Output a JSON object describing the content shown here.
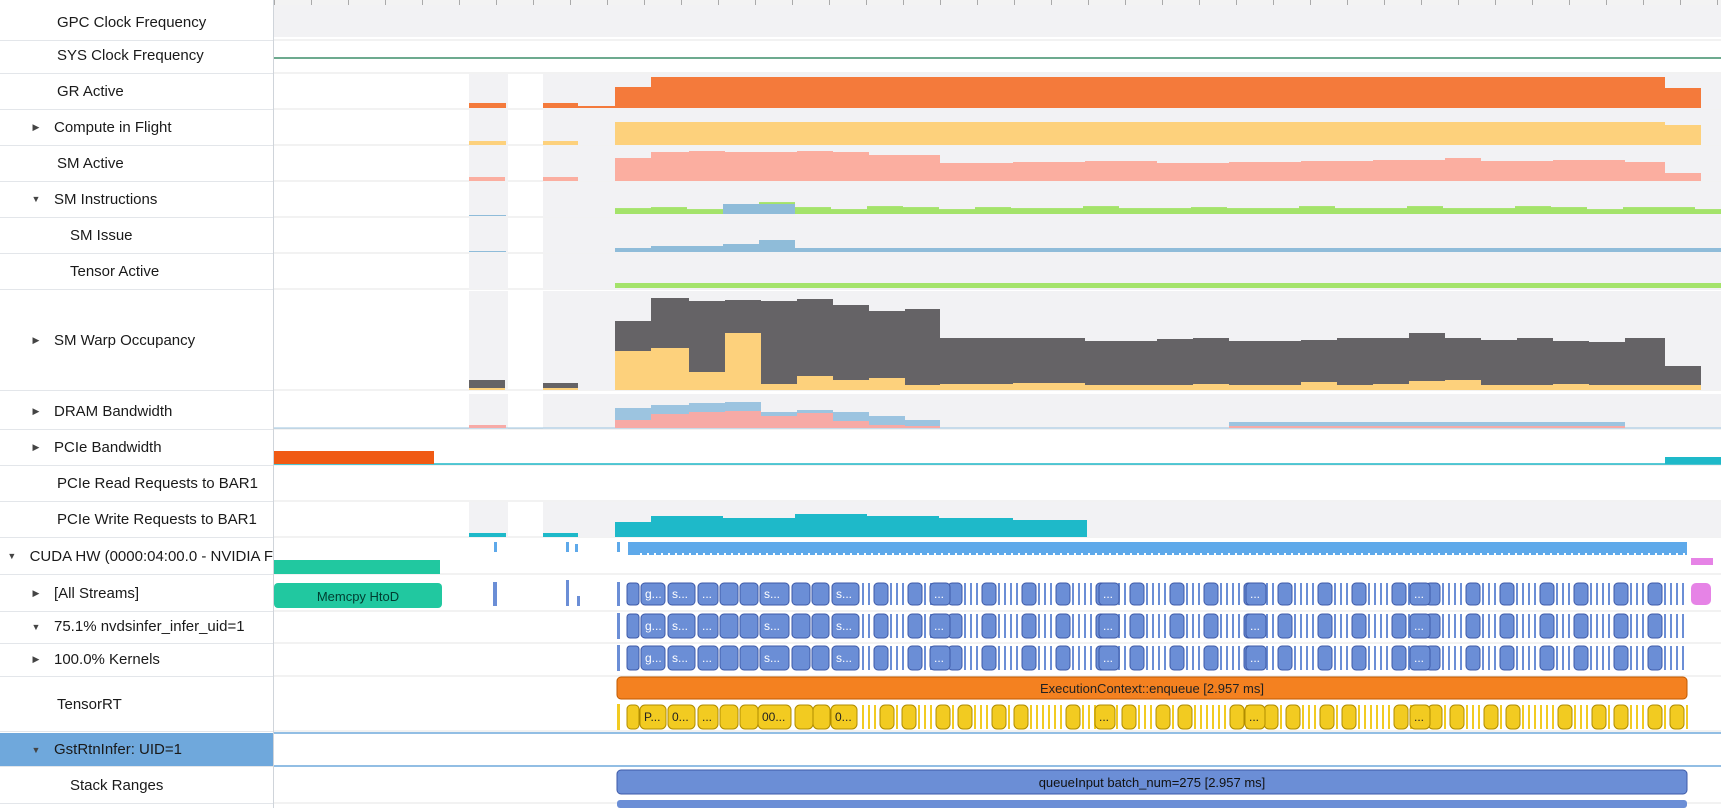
{
  "rows": [
    {
      "label": "GPC Clock Frequency",
      "indent": 1,
      "expander": "none"
    },
    {
      "label": "SYS Clock Frequency",
      "indent": 1,
      "expander": "none"
    },
    {
      "label": "GR Active",
      "indent": 1,
      "expander": "none"
    },
    {
      "label": "Compute in Flight",
      "indent": 1,
      "expander": "collapsed"
    },
    {
      "label": "SM Active",
      "indent": 1,
      "expander": "none"
    },
    {
      "label": "SM Instructions",
      "indent": 1,
      "expander": "expanded"
    },
    {
      "label": "SM Issue",
      "indent": 2,
      "expander": "none"
    },
    {
      "label": "Tensor Active",
      "indent": 2,
      "expander": "none"
    },
    {
      "label": "SM Warp Occupancy",
      "indent": 1,
      "expander": "collapsed"
    },
    {
      "label": "DRAM Bandwidth",
      "indent": 1,
      "expander": "collapsed"
    },
    {
      "label": "PCIe Bandwidth",
      "indent": 1,
      "expander": "collapsed"
    },
    {
      "label": "PCIe Read Requests to BAR1",
      "indent": 1,
      "expander": "none"
    },
    {
      "label": "PCIe Write Requests to BAR1",
      "indent": 1,
      "expander": "none"
    },
    {
      "label": "CUDA HW (0000:04:00.0 - NVIDIA F",
      "indent": 0,
      "expander": "expanded"
    },
    {
      "label": "[All Streams]",
      "indent": 1,
      "expander": "collapsed"
    },
    {
      "label": "75.1% nvdsinfer_infer_uid=1",
      "indent": 1,
      "expander": "expanded"
    },
    {
      "label": "100.0% Kernels",
      "indent": 1,
      "expander": "collapsed"
    },
    {
      "label": "TensorRT",
      "indent": 1,
      "expander": "none"
    },
    {
      "label": "GstRtnInfer: UID=1",
      "indent": 1,
      "expander": "expanded",
      "selected": true
    },
    {
      "label": "Stack Ranges",
      "indent": 2,
      "expander": "none"
    }
  ],
  "labels": {
    "memcpy": "Memcpy HtoD",
    "enqueue": "ExecutionContext::enqueue [2.957 ms]",
    "queue_input": "queueInput batch_num=275 [2.957 ms]",
    "kernel_g": "g...",
    "kernel_s": "s...",
    "kernel_dots": "...",
    "trt_p": "P...",
    "trt_0": "0...",
    "trt_00": "00...",
    "trt_dots": "..."
  },
  "colors": {
    "gr_active": "#f47a3b",
    "compute_in_flight": "#fdd17c",
    "sm_active": "#fbaea0",
    "sm_issue": "#8fbcd9",
    "tensor_active": "#a4e36a",
    "warp_dark": "#656366",
    "warp_light": "#fdd17c",
    "dram_blue": "#9cc4e0",
    "dram_pink": "#f7aaa6",
    "pcie_orange": "#f05a14",
    "pcie_teal": "#1eb9c9",
    "cuda_hw": "#5ea9ea",
    "memcpy": "#21c8a0",
    "kernel": "#6b8ed6",
    "kernel_border": "#3e5aa8",
    "enqueue": "#f48120",
    "trt_yellow": "#f2cb21",
    "magenta": "#e683e6",
    "selection": "#6fa8dc",
    "sys_clock_line": "#3d8d6a"
  }
}
